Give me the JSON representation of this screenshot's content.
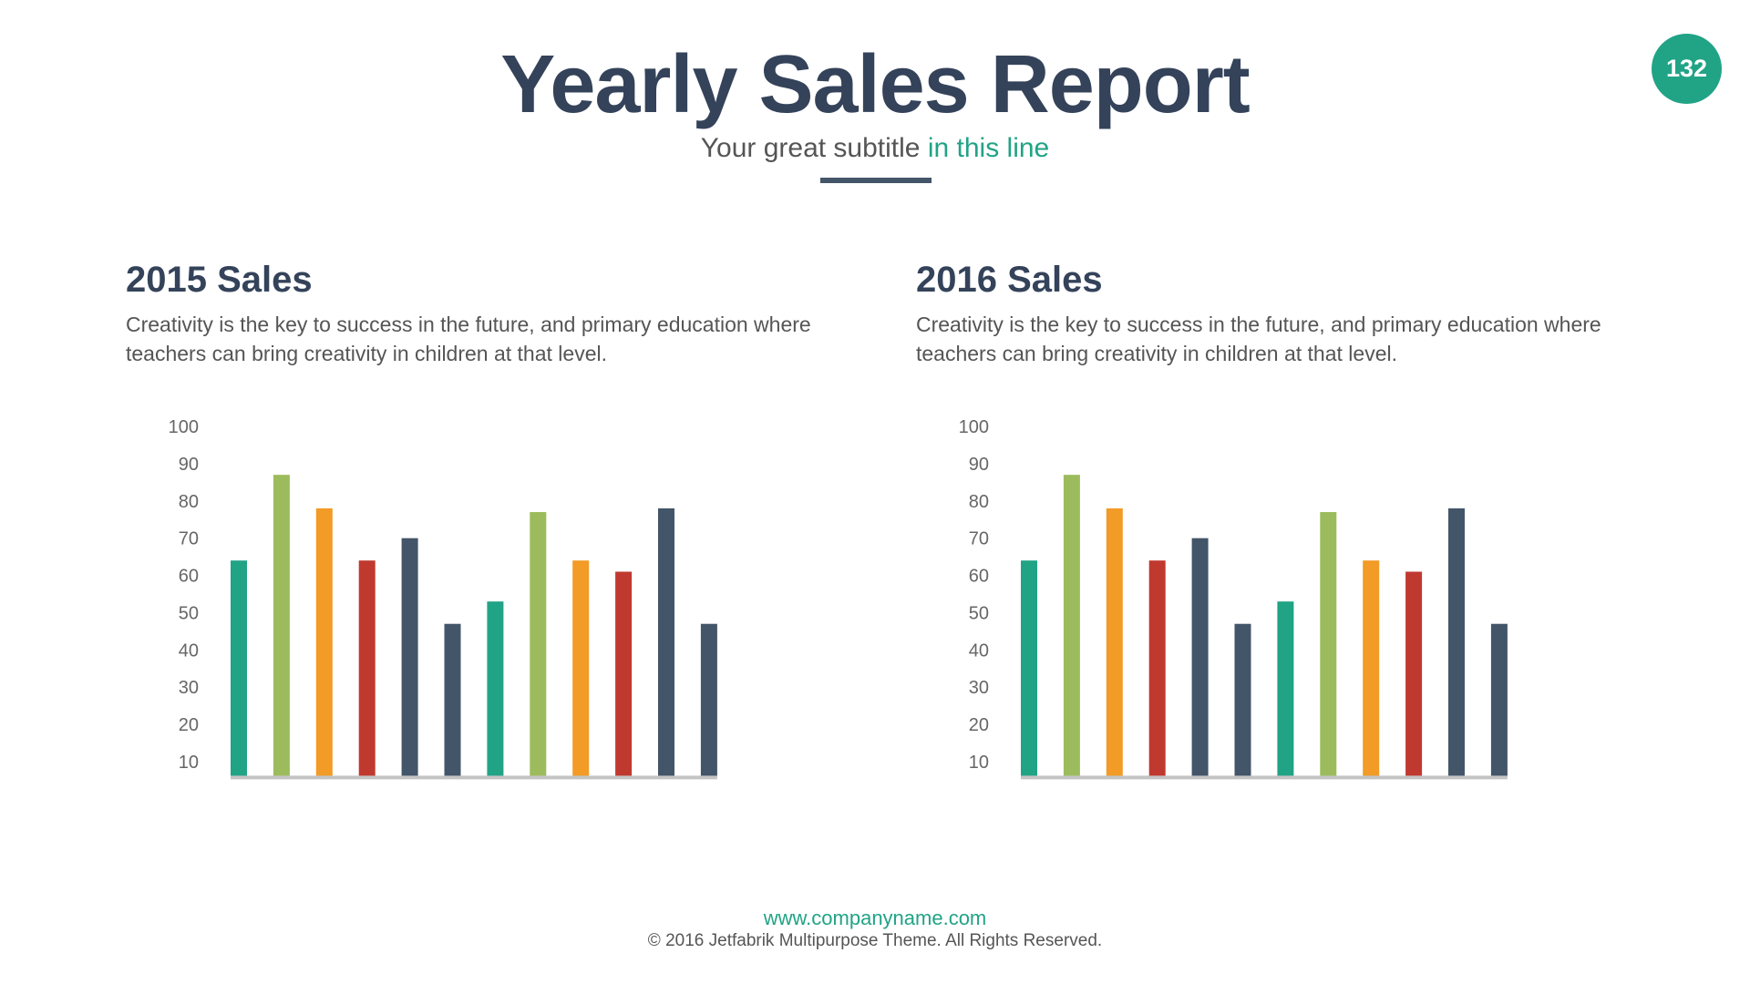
{
  "header": {
    "title": "Yearly Sales Report",
    "subtitle_main": "Your great subtitle ",
    "subtitle_accent": "in this line",
    "page_number": "132"
  },
  "sections": [
    {
      "title": "2015 Sales",
      "description": "Creativity is the key to success in the future, and primary education where teachers can bring creativity in children at that level."
    },
    {
      "title": "2016 Sales",
      "description": "Creativity is the key to success in the future, and primary education where teachers can bring creativity in children at that level."
    }
  ],
  "colors": {
    "teal": "#21a386",
    "green": "#9cbb5c",
    "orange": "#f29b26",
    "red": "#c0392f",
    "navy": "#435569",
    "axis": "#c4c4c4"
  },
  "chart_data": [
    {
      "type": "bar",
      "title": "2015 Sales",
      "yticks": [
        10,
        20,
        30,
        40,
        50,
        60,
        70,
        80,
        90,
        100
      ],
      "ylim": [
        6,
        100
      ],
      "values": [
        64,
        87,
        78,
        64,
        70,
        47,
        53,
        77,
        64,
        61,
        78,
        47
      ],
      "bar_colors": [
        "#21a386",
        "#9cbb5c",
        "#f29b26",
        "#c0392f",
        "#435569",
        "#435569",
        "#21a386",
        "#9cbb5c",
        "#f29b26",
        "#c0392f",
        "#435569",
        "#435569"
      ]
    },
    {
      "type": "bar",
      "title": "2016 Sales",
      "yticks": [
        10,
        20,
        30,
        40,
        50,
        60,
        70,
        80,
        90,
        100
      ],
      "ylim": [
        6,
        100
      ],
      "values": [
        64,
        87,
        78,
        64,
        70,
        47,
        53,
        77,
        64,
        61,
        78,
        47
      ],
      "bar_colors": [
        "#21a386",
        "#9cbb5c",
        "#f29b26",
        "#c0392f",
        "#435569",
        "#435569",
        "#21a386",
        "#9cbb5c",
        "#f29b26",
        "#c0392f",
        "#435569",
        "#435569"
      ]
    }
  ],
  "footer": {
    "url": "www.companyname.com",
    "copyright": "© 2016 Jetfabrik Multipurpose Theme. All Rights Reserved."
  }
}
